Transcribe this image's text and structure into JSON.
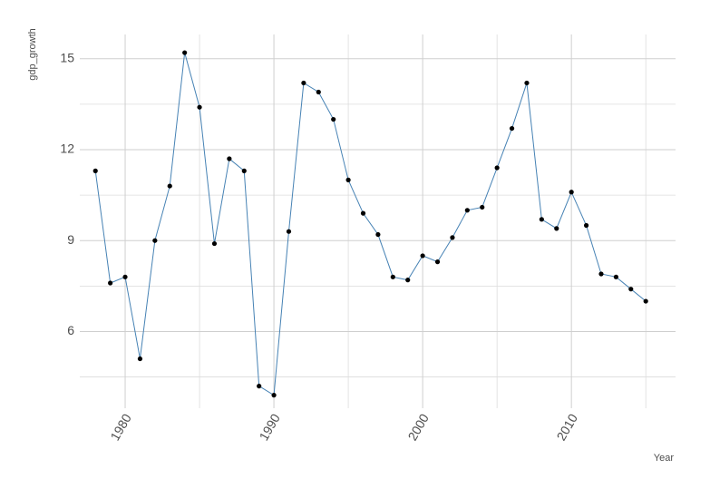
{
  "chart_data": {
    "type": "line",
    "x_label": "Year",
    "y_label": "gdp_growth",
    "x": [
      1978,
      1979,
      1980,
      1981,
      1982,
      1983,
      1984,
      1985,
      1986,
      1987,
      1988,
      1989,
      1990,
      1991,
      1992,
      1993,
      1994,
      1995,
      1996,
      1997,
      1998,
      1999,
      2000,
      2001,
      2002,
      2003,
      2004,
      2005,
      2006,
      2007,
      2008,
      2009,
      2010,
      2011,
      2012,
      2013,
      2014,
      2015
    ],
    "series": [
      {
        "color": "#4682b4",
        "point_color": "#000000",
        "values": [
          11.3,
          7.6,
          7.8,
          5.1,
          9.0,
          10.8,
          15.2,
          13.4,
          8.9,
          11.7,
          11.3,
          4.2,
          3.9,
          9.3,
          14.2,
          13.9,
          13.0,
          11.0,
          9.9,
          9.2,
          7.8,
          7.7,
          8.5,
          8.3,
          9.1,
          10.0,
          10.1,
          11.4,
          12.7,
          14.2,
          9.7,
          9.4,
          10.6,
          9.5,
          7.9,
          7.8,
          7.4,
          7.0
        ]
      }
    ],
    "xlim": [
      1976.95,
      2017.0
    ],
    "ylim": [
      3.47,
      15.8
    ],
    "xticks": [
      1980,
      1990,
      2000,
      2010
    ],
    "yticks": [
      6,
      9,
      12,
      15
    ],
    "minor_xticks": [
      1985,
      1995,
      2005,
      2015
    ],
    "minor_yticks": [
      4.5,
      7.5,
      10.5,
      13.5
    ],
    "grid": true
  }
}
